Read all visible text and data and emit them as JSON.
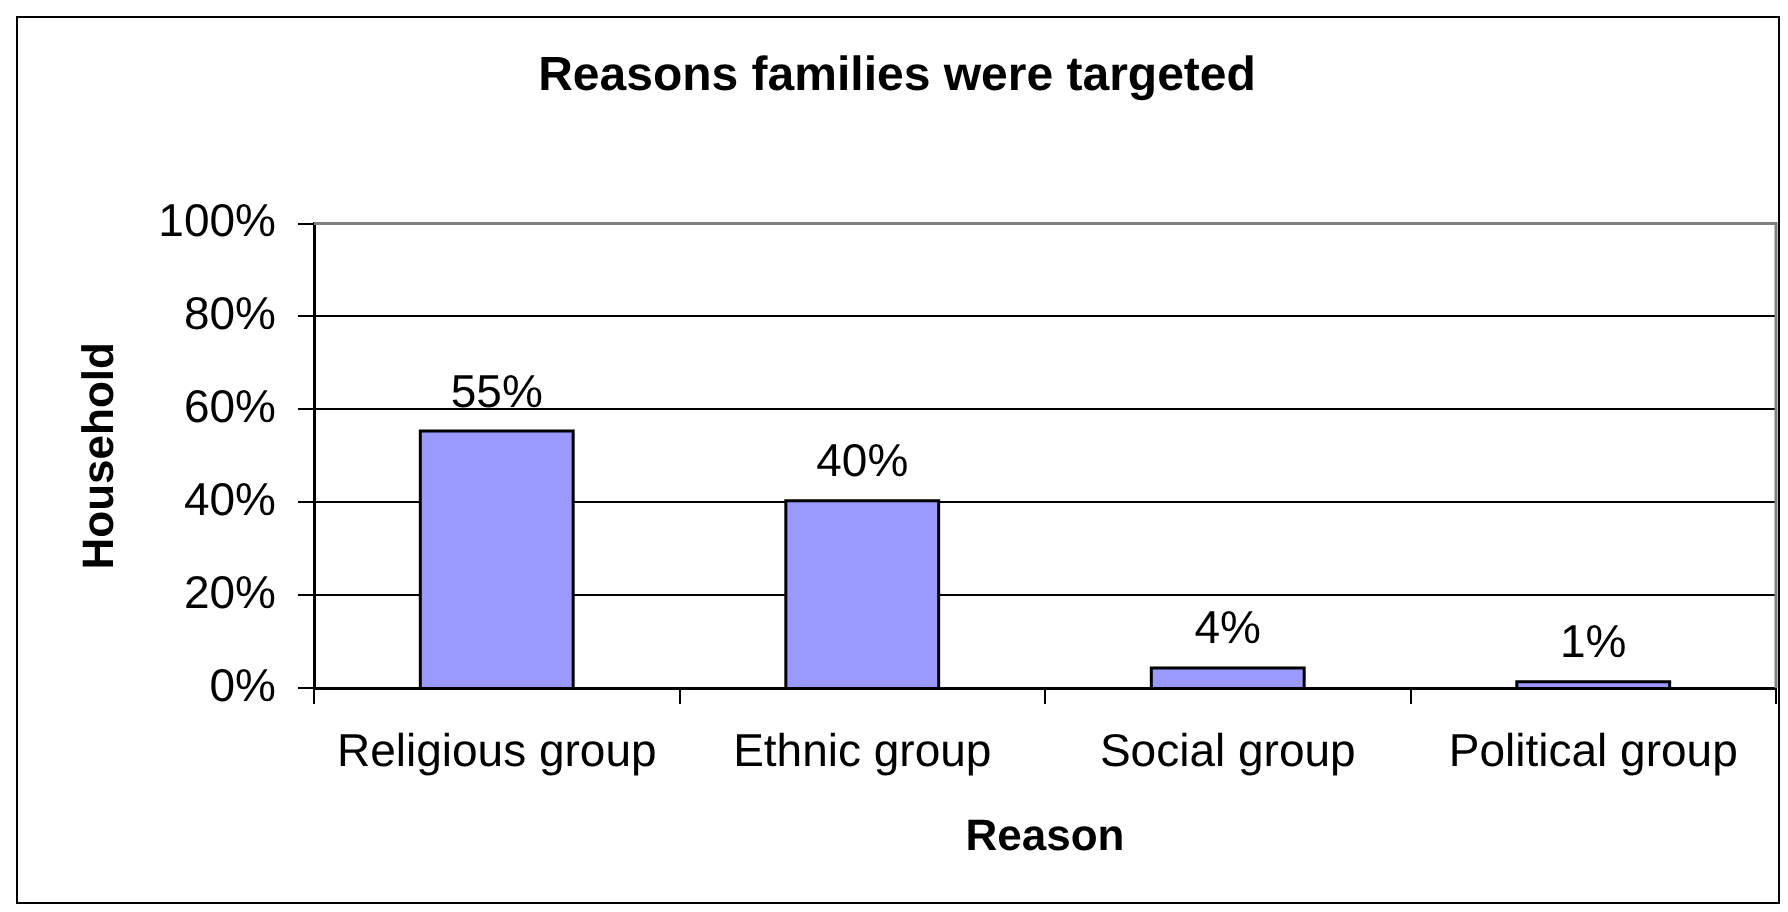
{
  "chart_data": {
    "type": "bar",
    "title": "Reasons families were targeted",
    "xlabel": "Reason",
    "ylabel": "Household",
    "categories": [
      "Religious group",
      "Ethnic group",
      "Social group",
      "Political group"
    ],
    "values": [
      55,
      40,
      4,
      1
    ],
    "value_labels": [
      "55%",
      "40%",
      "4%",
      "1%"
    ],
    "color": "#9999ff",
    "ylim": [
      0,
      100
    ],
    "yticks": [
      {
        "value": 0,
        "label": "0%"
      },
      {
        "value": 20,
        "label": "20%"
      },
      {
        "value": 40,
        "label": "40%"
      },
      {
        "value": 60,
        "label": "60%"
      },
      {
        "value": 80,
        "label": "80%"
      },
      {
        "value": 100,
        "label": "100%"
      }
    ],
    "grid": "y"
  }
}
